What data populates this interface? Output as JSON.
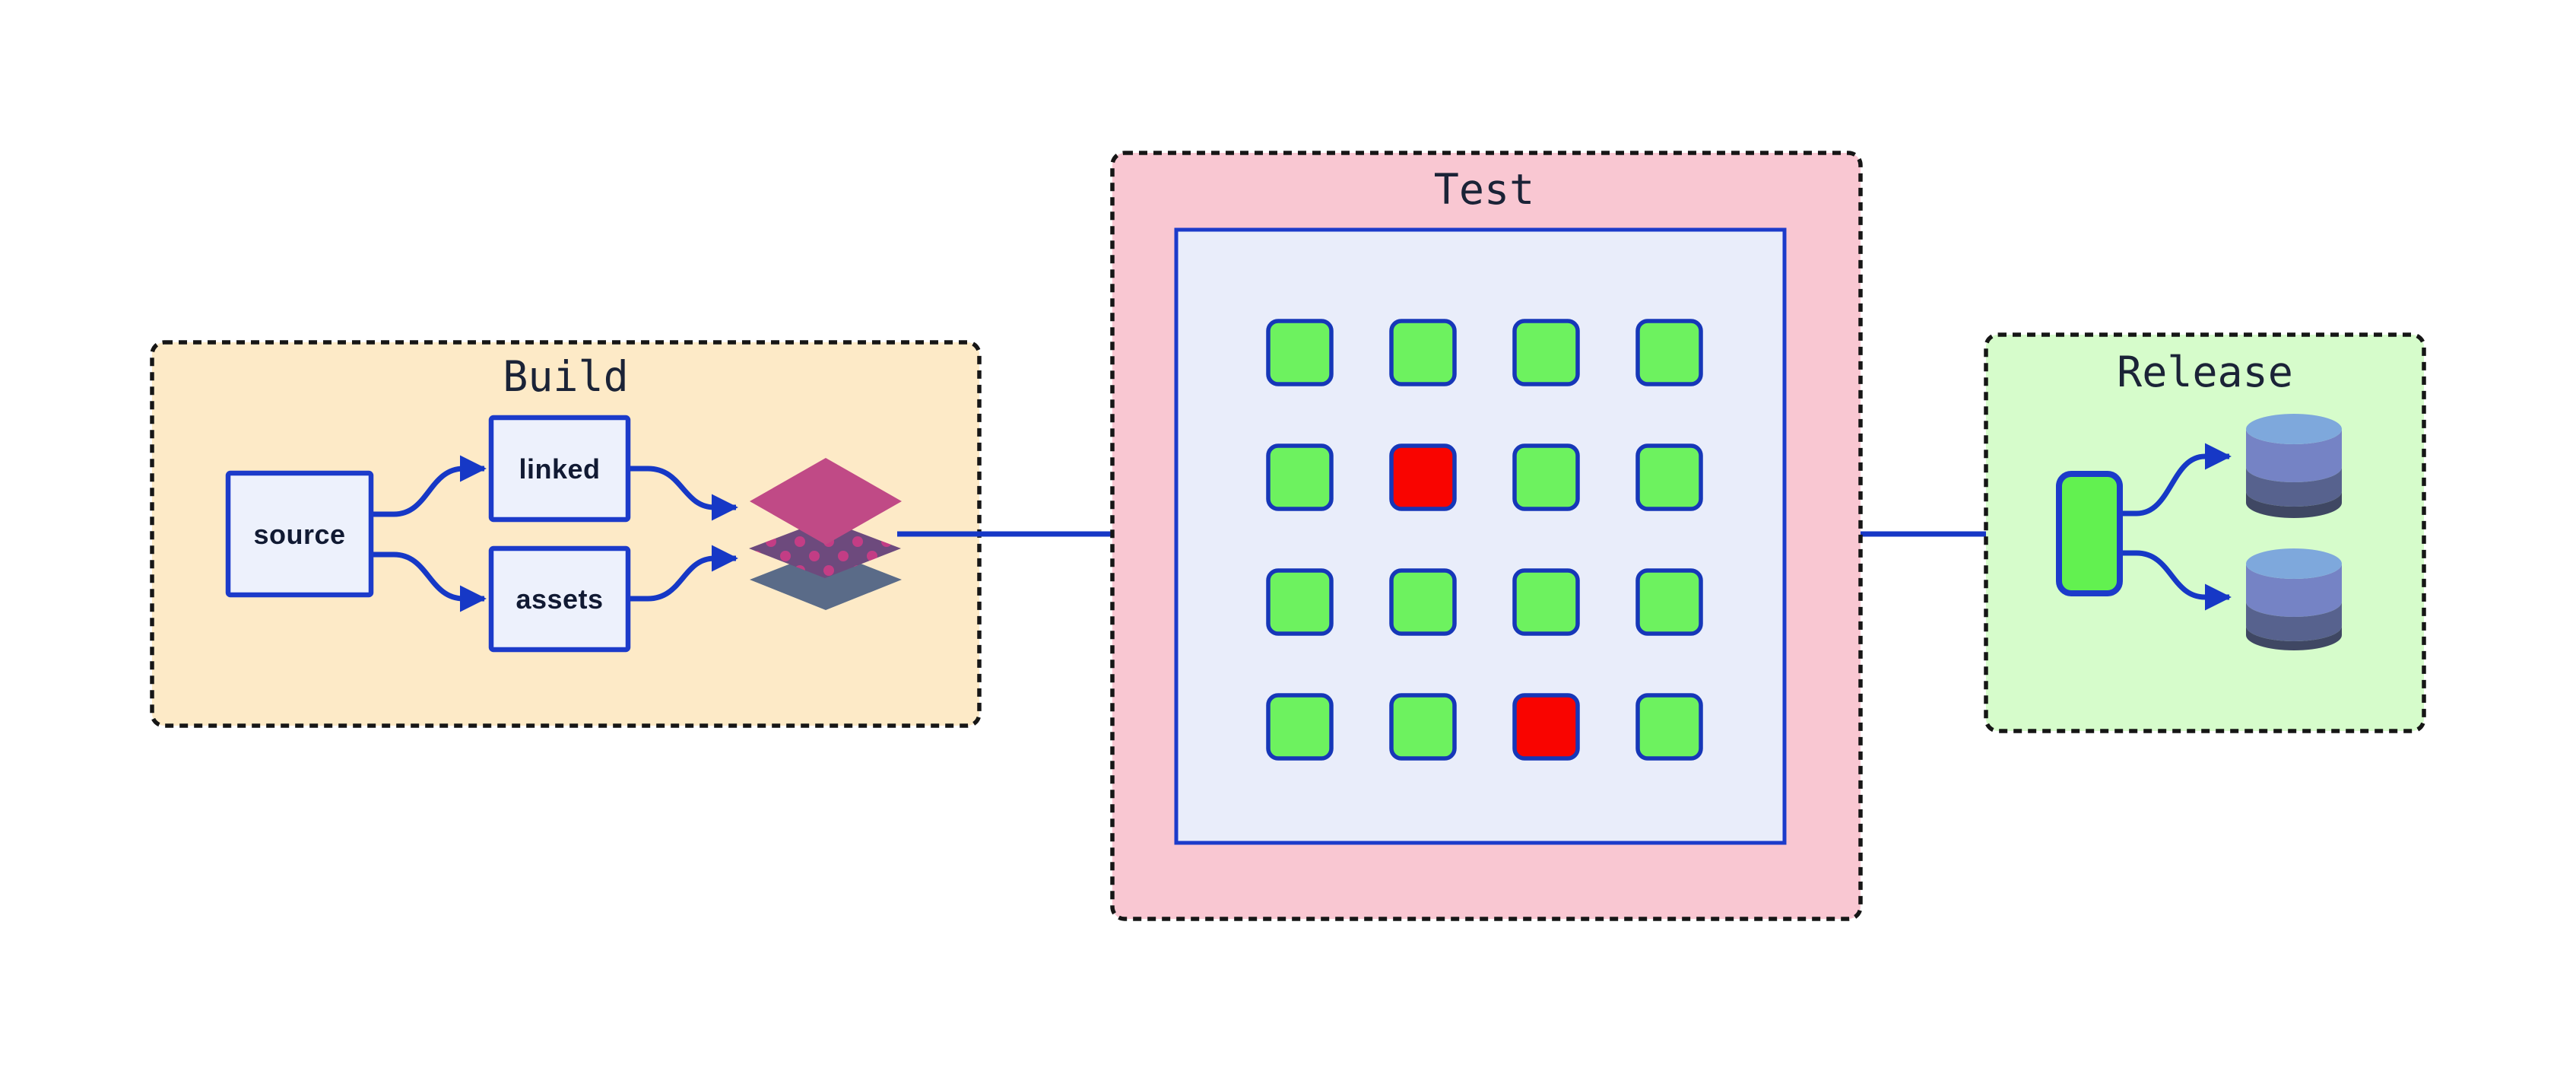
{
  "page": {
    "background": "#ffffff"
  },
  "stages": {
    "build": {
      "title": "Build",
      "bg": "#fdeac7"
    },
    "test": {
      "title": "Test",
      "bg": "#f9c7d2"
    },
    "release": {
      "title": "Release",
      "bg": "#d6fccb"
    }
  },
  "nodes": {
    "source": {
      "label": "source"
    },
    "linked": {
      "label": "linked"
    },
    "assets": {
      "label": "assets"
    }
  },
  "test_grid": {
    "rows": 4,
    "cols": 4,
    "statuses": [
      [
        "pass",
        "pass",
        "pass",
        "pass"
      ],
      [
        "pass",
        "fail",
        "pass",
        "pass"
      ],
      [
        "pass",
        "pass",
        "pass",
        "pass"
      ],
      [
        "pass",
        "pass",
        "fail",
        "pass"
      ]
    ],
    "pass_color": "#6df25f",
    "fail_color": "#f90400",
    "cell_border": "#1637b8"
  },
  "colors": {
    "dashed_border": "#161616",
    "title_text": "#1b2337",
    "label_text": "#111a33",
    "node_fill": "#edf1fc",
    "node_border": "#1c3bca",
    "arrow": "#1638c6",
    "test_inner_fill": "#e9edfa",
    "release_node_fill": "#62f150",
    "layers": {
      "top": "#c04a86",
      "middle": "#6d4a7d",
      "dots": "#c33d85",
      "bottom": "#5a6b88"
    },
    "cylinder": {
      "cap": "#7ea8dc",
      "upper": "#7583c5",
      "mid": "#57628e",
      "lower": "#3f4763"
    }
  }
}
